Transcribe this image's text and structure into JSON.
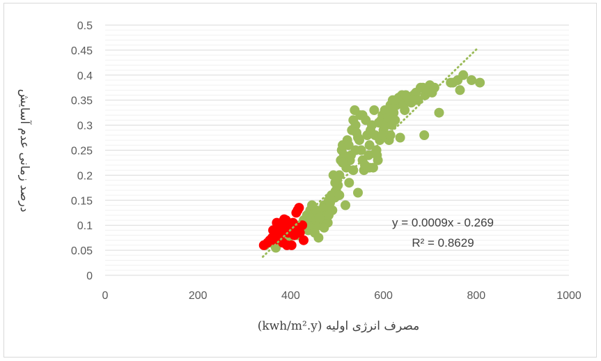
{
  "chart_data": {
    "type": "scatter",
    "title": "",
    "xlabel": "مصرف انرژی اولیه  (kwh/m².y)",
    "ylabel": "درصد زمانی عدم آسایش",
    "xlim": [
      0,
      1000
    ],
    "ylim": [
      0,
      0.5
    ],
    "x_ticks": [
      0,
      200,
      400,
      600,
      800,
      1000
    ],
    "y_ticks": [
      0,
      0.05,
      0.1,
      0.15,
      0.2,
      0.25,
      0.3,
      0.35,
      0.4,
      0.45,
      0.5
    ],
    "x_tick_labels": [
      "0",
      "200",
      "400",
      "600",
      "800",
      "1000"
    ],
    "y_tick_labels": [
      "0",
      "0.05",
      "0.1",
      "0.15",
      "0.2",
      "0.25",
      "0.3",
      "0.35",
      "0.4",
      "0.45",
      "0.5"
    ],
    "grid": true,
    "legend": "none",
    "trendline": {
      "type": "linear",
      "equation": "y = 0.0009x - 0.269",
      "r_squared": "R² = 0.8629",
      "x_range": [
        340,
        803
      ],
      "color": "#9bbb59"
    },
    "series": [
      {
        "color": "#9bbb59",
        "points": [
          [
            345,
            0.06
          ],
          [
            358,
            0.065
          ],
          [
            368,
            0.055
          ],
          [
            380,
            0.07
          ],
          [
            395,
            0.075
          ],
          [
            400,
            0.085
          ],
          [
            410,
            0.09
          ],
          [
            415,
            0.08
          ],
          [
            420,
            0.1
          ],
          [
            425,
            0.095
          ],
          [
            428,
            0.11
          ],
          [
            432,
            0.105
          ],
          [
            435,
            0.12
          ],
          [
            438,
            0.09
          ],
          [
            440,
            0.1
          ],
          [
            442,
            0.13
          ],
          [
            445,
            0.115
          ],
          [
            448,
            0.1
          ],
          [
            450,
            0.12
          ],
          [
            452,
            0.085
          ],
          [
            455,
            0.11
          ],
          [
            458,
            0.125
          ],
          [
            460,
            0.075
          ],
          [
            462,
            0.1
          ],
          [
            465,
            0.13
          ],
          [
            468,
            0.12
          ],
          [
            470,
            0.11
          ],
          [
            472,
            0.14
          ],
          [
            475,
            0.135
          ],
          [
            478,
            0.12
          ],
          [
            480,
            0.105
          ],
          [
            482,
            0.15
          ],
          [
            485,
            0.145
          ],
          [
            488,
            0.16
          ],
          [
            490,
            0.13
          ],
          [
            492,
            0.2
          ],
          [
            495,
            0.155
          ],
          [
            498,
            0.17
          ],
          [
            500,
            0.19
          ],
          [
            502,
            0.18
          ],
          [
            505,
            0.2
          ],
          [
            508,
            0.23
          ],
          [
            510,
            0.25
          ],
          [
            512,
            0.26
          ],
          [
            515,
            0.24
          ],
          [
            518,
            0.14
          ],
          [
            520,
            0.215
          ],
          [
            522,
            0.27
          ],
          [
            525,
            0.26
          ],
          [
            528,
            0.23
          ],
          [
            530,
            0.24
          ],
          [
            532,
            0.29
          ],
          [
            535,
            0.31
          ],
          [
            538,
            0.33
          ],
          [
            540,
            0.3
          ],
          [
            542,
            0.285
          ],
          [
            545,
            0.165
          ],
          [
            548,
            0.27
          ],
          [
            550,
            0.32
          ],
          [
            552,
            0.25
          ],
          [
            555,
            0.23
          ],
          [
            558,
            0.21
          ],
          [
            560,
            0.22
          ],
          [
            562,
            0.31
          ],
          [
            565,
            0.28
          ],
          [
            568,
            0.24
          ],
          [
            570,
            0.26
          ],
          [
            572,
            0.29
          ],
          [
            575,
            0.3
          ],
          [
            578,
            0.215
          ],
          [
            580,
            0.33
          ],
          [
            582,
            0.28
          ],
          [
            585,
            0.25
          ],
          [
            588,
            0.23
          ],
          [
            590,
            0.305
          ],
          [
            592,
            0.27
          ],
          [
            595,
            0.31
          ],
          [
            598,
            0.32
          ],
          [
            600,
            0.29
          ],
          [
            603,
            0.33
          ],
          [
            606,
            0.3
          ],
          [
            610,
            0.315
          ],
          [
            612,
            0.27
          ],
          [
            615,
            0.34
          ],
          [
            618,
            0.3
          ],
          [
            620,
            0.35
          ],
          [
            622,
            0.325
          ],
          [
            625,
            0.31
          ],
          [
            628,
            0.34
          ],
          [
            630,
            0.35
          ],
          [
            633,
            0.355
          ],
          [
            636,
            0.275
          ],
          [
            640,
            0.36
          ],
          [
            643,
            0.34
          ],
          [
            646,
            0.33
          ],
          [
            650,
            0.355
          ],
          [
            655,
            0.35
          ],
          [
            660,
            0.345
          ],
          [
            665,
            0.36
          ],
          [
            670,
            0.365
          ],
          [
            675,
            0.35
          ],
          [
            680,
            0.375
          ],
          [
            685,
            0.375
          ],
          [
            688,
            0.28
          ],
          [
            690,
            0.36
          ],
          [
            695,
            0.37
          ],
          [
            700,
            0.38
          ],
          [
            705,
            0.365
          ],
          [
            710,
            0.375
          ],
          [
            720,
            0.325
          ],
          [
            745,
            0.385
          ],
          [
            750,
            0.385
          ],
          [
            760,
            0.39
          ],
          [
            765,
            0.37
          ],
          [
            772,
            0.4
          ],
          [
            790,
            0.39
          ],
          [
            808,
            0.385
          ],
          [
            598,
            0.28
          ],
          [
            545,
            0.275
          ],
          [
            586,
            0.24
          ],
          [
            570,
            0.215
          ],
          [
            555,
            0.32
          ],
          [
            540,
            0.25
          ],
          [
            526,
            0.185
          ],
          [
            512,
            0.225
          ],
          [
            496,
            0.185
          ],
          [
            472,
            0.095
          ],
          [
            455,
            0.13
          ],
          [
            446,
            0.14
          ],
          [
            462,
            0.115
          ],
          [
            482,
            0.12
          ],
          [
            505,
            0.16
          ],
          [
            535,
            0.21
          ],
          [
            615,
            0.28
          ],
          [
            648,
            0.36
          ],
          [
            668,
            0.35
          ]
        ]
      },
      {
        "color": "#ff0000",
        "points": [
          [
            342,
            0.06
          ],
          [
            350,
            0.065
          ],
          [
            355,
            0.07
          ],
          [
            360,
            0.075
          ],
          [
            362,
            0.09
          ],
          [
            365,
            0.07
          ],
          [
            368,
            0.085
          ],
          [
            372,
            0.095
          ],
          [
            375,
            0.1
          ],
          [
            378,
            0.08
          ],
          [
            380,
            0.105
          ],
          [
            383,
            0.065
          ],
          [
            385,
            0.09
          ],
          [
            388,
            0.1
          ],
          [
            390,
            0.11
          ],
          [
            392,
            0.06
          ],
          [
            395,
            0.085
          ],
          [
            398,
            0.095
          ],
          [
            400,
            0.1
          ],
          [
            402,
            0.06
          ],
          [
            405,
            0.105
          ],
          [
            408,
            0.08
          ],
          [
            410,
            0.09
          ],
          [
            412,
            0.125
          ],
          [
            415,
            0.13
          ],
          [
            418,
            0.135
          ],
          [
            420,
            0.085
          ],
          [
            425,
            0.1
          ],
          [
            428,
            0.07
          ],
          [
            370,
            0.105
          ],
          [
            386,
            0.112
          ],
          [
            396,
            0.088
          ]
        ]
      }
    ]
  }
}
